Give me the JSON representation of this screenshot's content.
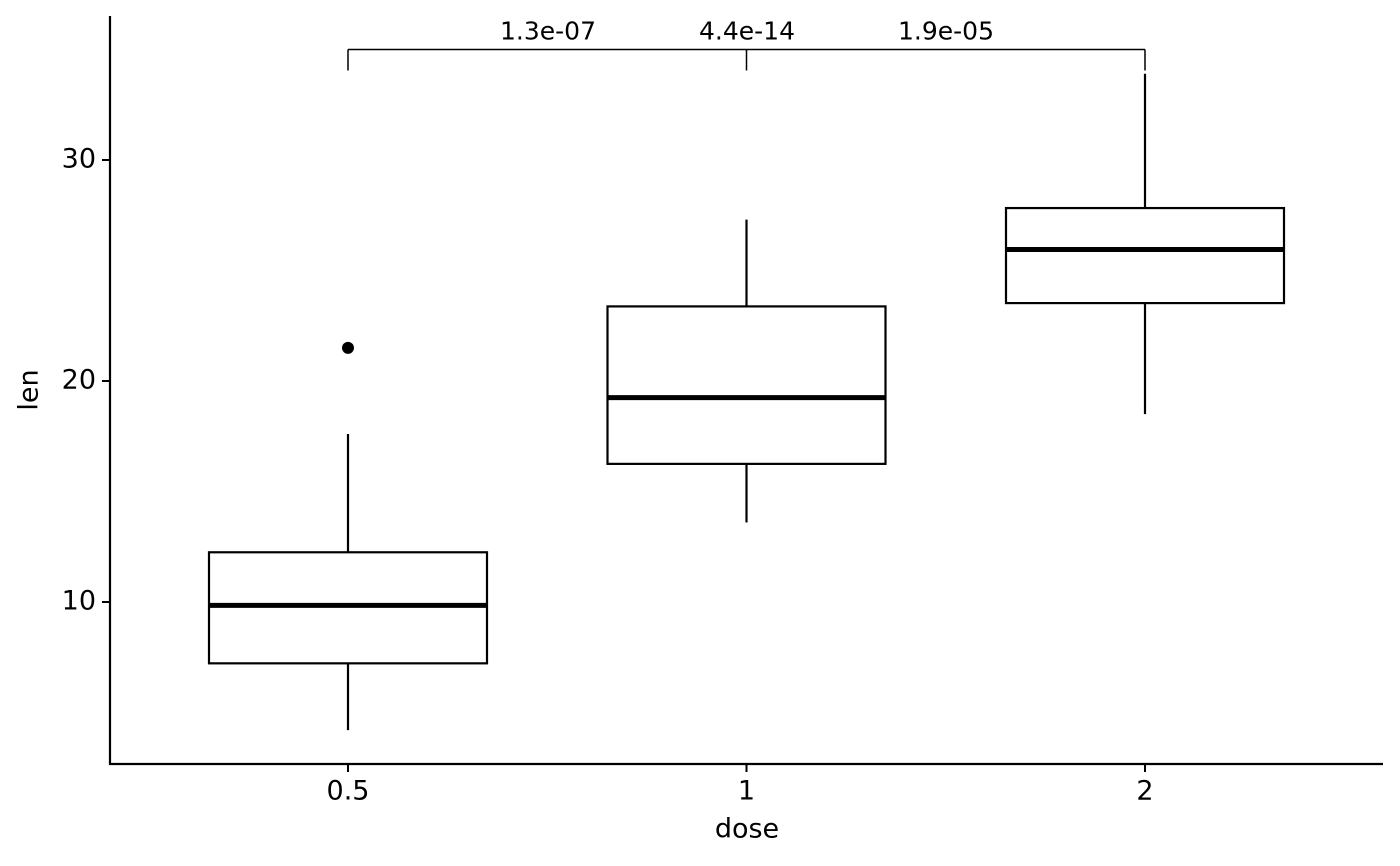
{
  "chart_data": {
    "type": "box",
    "x_label": "dose",
    "y_label": "len",
    "categories": [
      "0.5",
      "1",
      "2"
    ],
    "boxes": [
      {
        "min": 4.2,
        "q1": 7.225,
        "median": 9.85,
        "q3": 12.25,
        "max": 17.6,
        "outliers": [
          21.5
        ]
      },
      {
        "min": 13.6,
        "q1": 16.25,
        "median": 19.25,
        "q3": 23.375,
        "max": 27.3,
        "outliers": []
      },
      {
        "min": 18.5,
        "q1": 23.525,
        "median": 25.95,
        "q3": 27.825,
        "max": 33.9,
        "outliers": []
      }
    ],
    "color": "#000000",
    "ylim": [
      2.67,
      36.47
    ],
    "yticks": [
      10,
      20,
      30
    ],
    "comparison": {
      "y": 35,
      "labels": [
        "1.3e-07",
        "4.4e-14",
        "1.9e-05"
      ]
    }
  }
}
